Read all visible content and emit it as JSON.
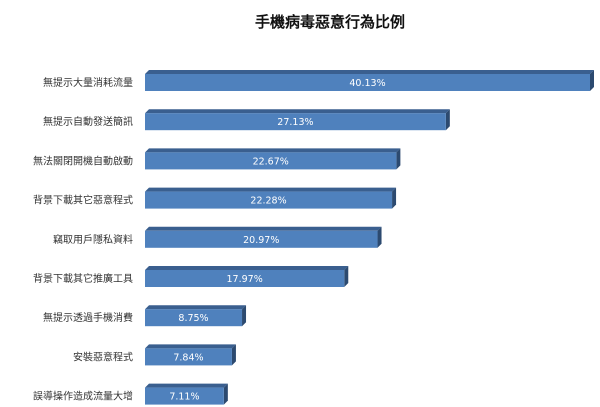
{
  "chart_data": {
    "type": "bar",
    "orientation": "horizontal",
    "title": "手機病毒惡意行為比例",
    "xlabel": "",
    "ylabel": "",
    "categories": [
      "無提示大量消耗流量",
      "無提示自動發送簡訊",
      "無法關閉開機自動啟動",
      "背景下載其它惡意程式",
      "竊取用戶隱私資料",
      "背景下載其它推廣工具",
      "無提示透過手機消費",
      "安裝惡意程式",
      "誤導操作造成流量大增"
    ],
    "values": [
      40.13,
      27.13,
      22.67,
      22.28,
      20.97,
      17.97,
      8.75,
      7.84,
      7.11
    ],
    "labels": [
      "40.13%",
      "27.13%",
      "22.67%",
      "22.28%",
      "20.97%",
      "17.97%",
      "8.75%",
      "7.84%",
      "7.11%"
    ],
    "xlim": [
      0,
      40.13
    ],
    "grid": false,
    "legend": "none",
    "colors": {
      "front": "#4f81bd",
      "top": "#3a5f8f",
      "side": "#2c4a70"
    }
  }
}
